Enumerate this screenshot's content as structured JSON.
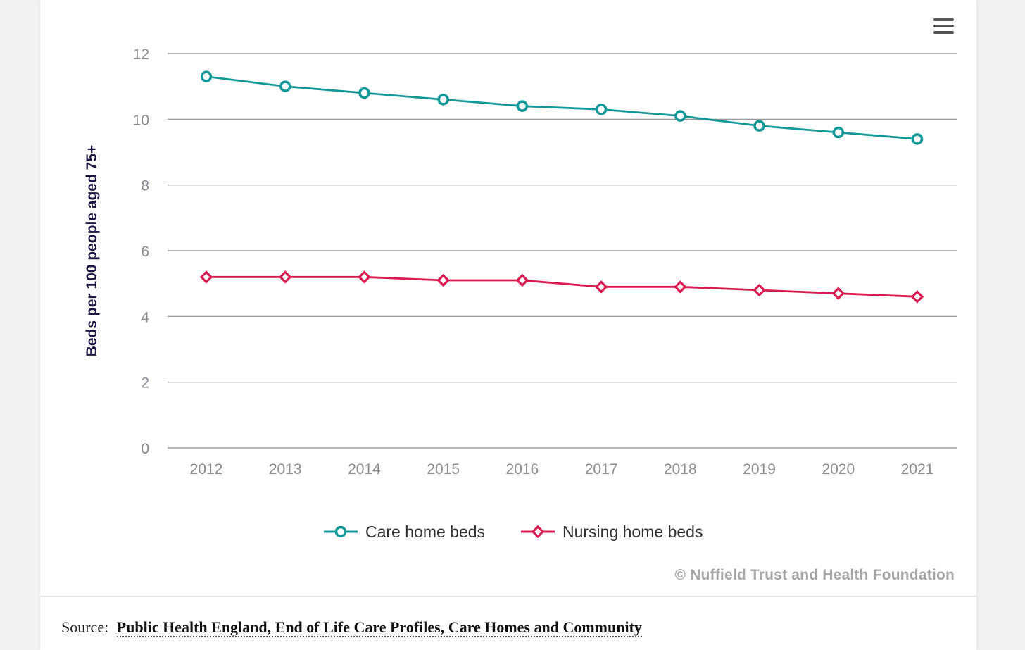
{
  "colors": {
    "care": "#13989a",
    "nursing": "#d91b52",
    "grid": "#8b8b93",
    "tick": "#8a8a93",
    "ylabel": "#1c1640",
    "legend_text": "#333333"
  },
  "chart_data": {
    "type": "line",
    "title": "",
    "xlabel": "",
    "ylabel": "Beds per 100 people aged 75+",
    "x": [
      "2012",
      "2013",
      "2014",
      "2015",
      "2016",
      "2017",
      "2018",
      "2019",
      "2020",
      "2021"
    ],
    "ylim": [
      0,
      12
    ],
    "yticks": [
      0,
      2,
      4,
      6,
      8,
      10,
      12
    ],
    "grid": true,
    "legend_position": "bottom",
    "series": [
      {
        "name": "Care home beds",
        "marker": "circle",
        "values": [
          11.3,
          11.0,
          10.8,
          10.6,
          10.4,
          10.3,
          10.1,
          9.8,
          9.6,
          9.4
        ]
      },
      {
        "name": "Nursing home beds",
        "marker": "diamond",
        "values": [
          5.2,
          5.2,
          5.2,
          5.1,
          5.1,
          4.9,
          4.9,
          4.8,
          4.7,
          4.6
        ]
      }
    ]
  },
  "credit": "© Nuffield Trust and Health Foundation",
  "source": {
    "label": "Source:",
    "link_text": "Public Health England, End of Life Care Profiles, Care Homes and Community"
  },
  "menu": {
    "icon": "hamburger-menu-icon"
  }
}
